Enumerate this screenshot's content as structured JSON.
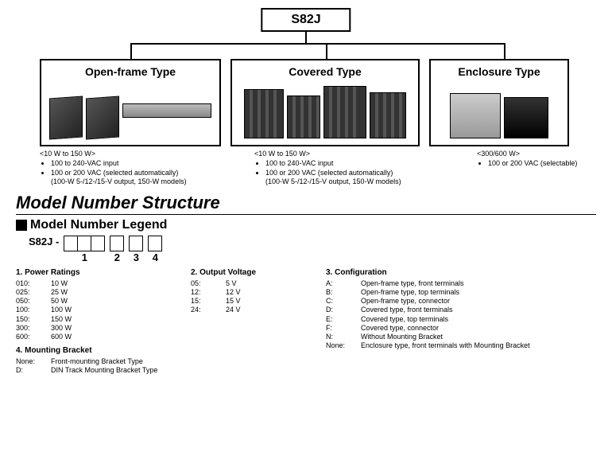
{
  "root": "S82J",
  "types": [
    {
      "title": "Open-frame Type",
      "range": "<10 W to 150 W>",
      "bullets": [
        "100 to 240-VAC input",
        "100 or 200 VAC (selected automatically)\n(100-W 5-/12-/15-V output, 150-W models)"
      ]
    },
    {
      "title": "Covered Type",
      "range": "<10 W to 150 W>",
      "bullets": [
        "100 to 240-VAC input",
        "100 or 200 VAC (selected automatically)\n(100-W 5-/12-/15-V output, 150-W models)"
      ]
    },
    {
      "title": "Enclosure Type",
      "range": "<300/600 W>",
      "bullets": [
        "100 or 200 VAC (selectable)"
      ]
    }
  ],
  "section_title": "Model Number Structure",
  "legend_title": "Model Number Legend",
  "model_prefix": "S82J -",
  "slots": [
    {
      "boxes": 3,
      "index": "1"
    },
    {
      "boxes": 1,
      "index": "2"
    },
    {
      "boxes": 1,
      "index": "3"
    },
    {
      "boxes": 1,
      "index": "4"
    }
  ],
  "legend": {
    "power": {
      "heading": "1. Power Ratings",
      "items": [
        [
          "010:",
          "10 W"
        ],
        [
          "025:",
          "25 W"
        ],
        [
          "050:",
          "50 W"
        ],
        [
          "100:",
          "100 W"
        ],
        [
          "150:",
          "150 W"
        ],
        [
          "300:",
          "300 W"
        ],
        [
          "600:",
          "600 W"
        ]
      ]
    },
    "output": {
      "heading": "2. Output Voltage",
      "items": [
        [
          "05:",
          "5 V"
        ],
        [
          "12:",
          "12 V"
        ],
        [
          "15:",
          "15 V"
        ],
        [
          "24:",
          "24 V"
        ]
      ]
    },
    "config": {
      "heading": "3. Configuration",
      "items": [
        [
          "A:",
          "Open-frame type, front terminals"
        ],
        [
          "B:",
          "Open-frame type, top terminals"
        ],
        [
          "C:",
          "Open-frame type, connector"
        ],
        [
          "D:",
          "Covered type, front terminals"
        ],
        [
          "E:",
          "Covered type, top terminals"
        ],
        [
          "F:",
          "Covered type, connector"
        ],
        [
          "N:",
          "Without Mounting Bracket"
        ],
        [
          "None:",
          "Enclosure type, front terminals with Mounting Bracket"
        ]
      ]
    },
    "mount": {
      "heading": "4. Mounting Bracket",
      "items": [
        [
          "None:",
          "Front-mounting Bracket Type"
        ],
        [
          "D:",
          "DIN Track Mounting Bracket Type"
        ]
      ]
    }
  }
}
